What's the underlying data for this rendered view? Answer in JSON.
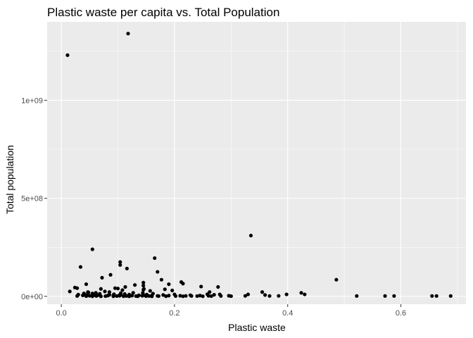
{
  "chart_data": {
    "type": "scatter",
    "title": "Plastic waste per capita vs. Total Population",
    "xlabel": "Plastic waste",
    "ylabel": "Total population",
    "xlim": [
      -0.025,
      0.715
    ],
    "ylim": [
      -40000000,
      1400000000
    ],
    "x_ticks": [
      0.0,
      0.2,
      0.4,
      0.6
    ],
    "x_tick_labels": [
      "0.0",
      "0.2",
      "0.4",
      "0.6"
    ],
    "y_ticks": [
      0,
      500000000,
      1000000000
    ],
    "y_tick_labels": [
      "0e+00",
      "5e+08",
      "1e+09"
    ],
    "grid": true,
    "legend": "none",
    "point_color": "#000000",
    "panel_color": "#ebebeb",
    "points": [
      [
        0.118,
        1340000000
      ],
      [
        0.011,
        1230000000
      ],
      [
        0.335,
        310000000
      ],
      [
        0.055,
        240000000
      ],
      [
        0.165,
        195000000
      ],
      [
        0.104,
        175000000
      ],
      [
        0.104,
        160000000
      ],
      [
        0.034,
        150000000
      ],
      [
        0.116,
        142000000
      ],
      [
        0.17,
        125000000
      ],
      [
        0.087,
        110000000
      ],
      [
        0.072,
        95000000
      ],
      [
        0.177,
        85000000
      ],
      [
        0.486,
        85000000
      ],
      [
        0.212,
        73000000
      ],
      [
        0.145,
        70000000
      ],
      [
        0.215,
        65000000
      ],
      [
        0.19,
        62000000
      ],
      [
        0.044,
        62000000
      ],
      [
        0.13,
        58000000
      ],
      [
        0.145,
        55000000
      ],
      [
        0.247,
        50000000
      ],
      [
        0.277,
        48000000
      ],
      [
        0.113,
        48000000
      ],
      [
        0.024,
        45000000
      ],
      [
        0.028,
        42000000
      ],
      [
        0.095,
        42000000
      ],
      [
        0.1,
        40000000
      ],
      [
        0.07,
        38000000
      ],
      [
        0.146,
        38000000
      ],
      [
        0.183,
        36000000
      ],
      [
        0.145,
        34000000
      ],
      [
        0.108,
        32000000
      ],
      [
        0.196,
        30000000
      ],
      [
        0.157,
        28000000
      ],
      [
        0.015,
        25000000
      ],
      [
        0.077,
        25000000
      ],
      [
        0.085,
        22000000
      ],
      [
        0.047,
        22000000
      ],
      [
        0.355,
        22000000
      ],
      [
        0.262,
        22000000
      ],
      [
        0.048,
        20000000
      ],
      [
        0.061,
        18000000
      ],
      [
        0.424,
        18000000
      ],
      [
        0.144,
        18000000
      ],
      [
        0.127,
        18000000
      ],
      [
        0.105,
        16000000
      ],
      [
        0.04,
        15000000
      ],
      [
        0.055,
        15000000
      ],
      [
        0.162,
        14000000
      ],
      [
        0.068,
        13000000
      ],
      [
        0.112,
        12000000
      ],
      [
        0.093,
        11000000
      ],
      [
        0.258,
        11000000
      ],
      [
        0.33,
        10000000
      ],
      [
        0.398,
        10000000
      ],
      [
        0.43,
        10000000
      ],
      [
        0.28,
        10000000
      ],
      [
        0.2,
        10000000
      ],
      [
        0.151,
        9000000
      ],
      [
        0.03,
        9000000
      ],
      [
        0.12,
        9000000
      ],
      [
        0.27,
        8000000
      ],
      [
        0.085,
        8000000
      ],
      [
        0.105,
        8000000
      ],
      [
        0.36,
        7000000
      ],
      [
        0.18,
        7000000
      ],
      [
        0.045,
        7000000
      ],
      [
        0.065,
        6500000
      ],
      [
        0.228,
        6000000
      ],
      [
        0.058,
        6000000
      ],
      [
        0.137,
        5500000
      ],
      [
        0.102,
        5000000
      ],
      [
        0.092,
        5000000
      ],
      [
        0.038,
        5000000
      ],
      [
        0.148,
        4500000
      ],
      [
        0.245,
        4000000
      ],
      [
        0.19,
        4000000
      ],
      [
        0.125,
        4000000
      ],
      [
        0.082,
        4000000
      ],
      [
        0.16,
        3500000
      ],
      [
        0.05,
        3000000
      ],
      [
        0.21,
        3000000
      ],
      [
        0.103,
        3000000
      ],
      [
        0.143,
        3000000
      ],
      [
        0.26,
        3000000
      ],
      [
        0.296,
        3000000
      ],
      [
        0.325,
        2500000
      ],
      [
        0.384,
        2500000
      ],
      [
        0.22,
        2500000
      ],
      [
        0.17,
        2500000
      ],
      [
        0.028,
        2000000
      ],
      [
        0.062,
        2000000
      ],
      [
        0.115,
        2000000
      ],
      [
        0.155,
        2000000
      ],
      [
        0.23,
        2000000
      ],
      [
        0.282,
        2000000
      ],
      [
        0.368,
        2000000
      ],
      [
        0.522,
        2000000
      ],
      [
        0.572,
        2000000
      ],
      [
        0.588,
        2000000
      ],
      [
        0.655,
        2000000
      ],
      [
        0.663,
        2000000
      ],
      [
        0.688,
        2000000
      ],
      [
        0.098,
        1500000
      ],
      [
        0.132,
        1500000
      ],
      [
        0.172,
        1500000
      ],
      [
        0.202,
        1500000
      ],
      [
        0.24,
        1500000
      ],
      [
        0.078,
        1000000
      ],
      [
        0.15,
        1000000
      ],
      [
        0.265,
        1000000
      ],
      [
        0.3,
        1000000
      ],
      [
        0.044,
        1000000
      ],
      [
        0.11,
        800000
      ],
      [
        0.185,
        800000
      ],
      [
        0.055,
        500000
      ],
      [
        0.092,
        500000
      ],
      [
        0.135,
        500000
      ],
      [
        0.215,
        500000
      ],
      [
        0.25,
        500000
      ],
      [
        0.07,
        300000
      ],
      [
        0.16,
        300000
      ],
      [
        0.12,
        300000
      ]
    ]
  }
}
